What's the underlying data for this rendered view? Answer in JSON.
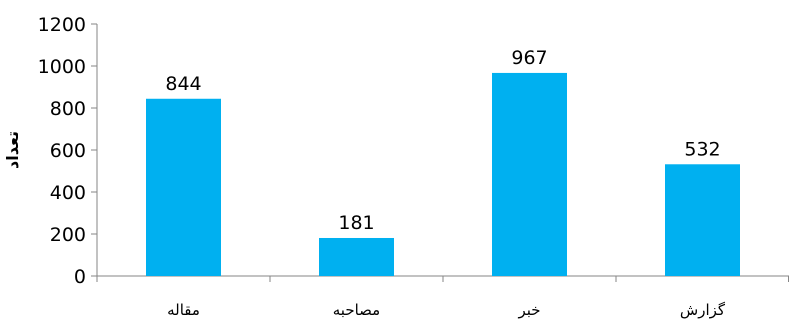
{
  "chart_data": {
    "type": "bar",
    "title": "",
    "xlabel": "",
    "ylabel": "تعداد",
    "categories": [
      "مقاله",
      "مصاحبه",
      "خبر",
      "گزارش"
    ],
    "values": [
      844,
      181,
      967,
      532
    ],
    "ylim": [
      0,
      1200
    ],
    "yticks": [
      "0",
      "200",
      "400",
      "600",
      "800",
      "1000",
      "1200"
    ],
    "grid": false,
    "legend": "none",
    "bar_color": "#00b0f0",
    "axis_color": "#868686"
  }
}
